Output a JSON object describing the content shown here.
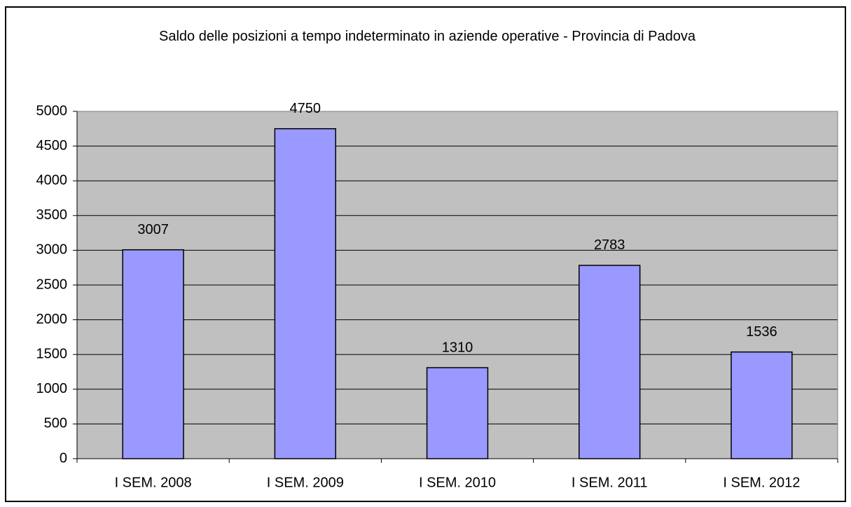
{
  "chart_data": {
    "type": "bar",
    "title": "Saldo delle posizioni a tempo indeterminato in aziende operative - Provincia di Padova",
    "categories": [
      "I SEM. 2008",
      "I SEM. 2009",
      "I SEM. 2010",
      "I SEM. 2011",
      "I SEM. 2012"
    ],
    "values": [
      3007,
      4750,
      1310,
      2783,
      1536
    ],
    "color": "#9999ff",
    "ylim": [
      0,
      5000
    ],
    "yticks": [
      0,
      500,
      1000,
      1500,
      2000,
      2500,
      3000,
      3500,
      4000,
      4500,
      5000
    ],
    "grid": true
  }
}
